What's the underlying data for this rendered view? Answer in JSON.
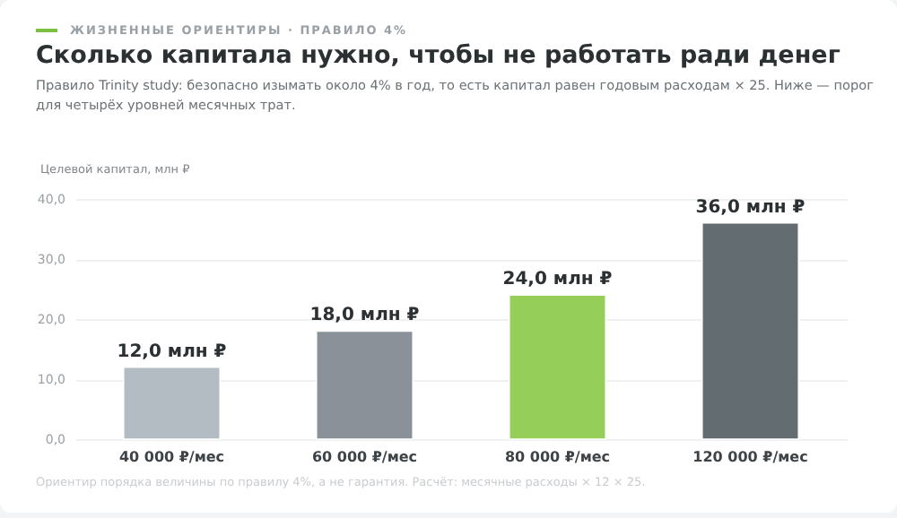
{
  "chart_data": {
    "type": "bar",
    "title": "Сколько капитала нужно, чтобы не работать ради денег",
    "subtitle": "Правило Trinity study: безопасно изымать около 4% в год, то есть капитал равен годовым расходам × 25. Ниже — порог для четырёх уровней месячных трат.",
    "ylabel": "Целевой капитал, млн ₽",
    "annotations": [
      "ЖИЗНЕННЫЕ ОРИЕНТИРЫ · ПРАВИЛО 4%",
      "Ориентир порядка величины по правилу 4%, а не гарантия. Расчёт: месячные расходы × 12 × 25."
    ],
    "categories": [
      "40 000 ₽/мес",
      "60 000 ₽/мес",
      "80 000 ₽/мес",
      "120 000 ₽/мес"
    ],
    "values": [
      12.0,
      18.0,
      24.0,
      36.0
    ],
    "colors": [
      "#b3bcc2",
      "#8a9198",
      "#95cf5a",
      "#636c70"
    ],
    "value_labels": [
      "12,0 млн ₽",
      "18,0 млн ₽",
      "24,0 млн ₽",
      "36,0 млн ₽"
    ],
    "ylim": [
      0,
      40
    ],
    "yticks": [
      {
        "value": 0,
        "label": "0,0"
      },
      {
        "value": 10,
        "label": "10,0"
      },
      {
        "value": 20,
        "label": "20,0"
      },
      {
        "value": 30,
        "label": "30,0"
      },
      {
        "value": 40,
        "label": "40,0"
      }
    ],
    "grid": "y"
  }
}
